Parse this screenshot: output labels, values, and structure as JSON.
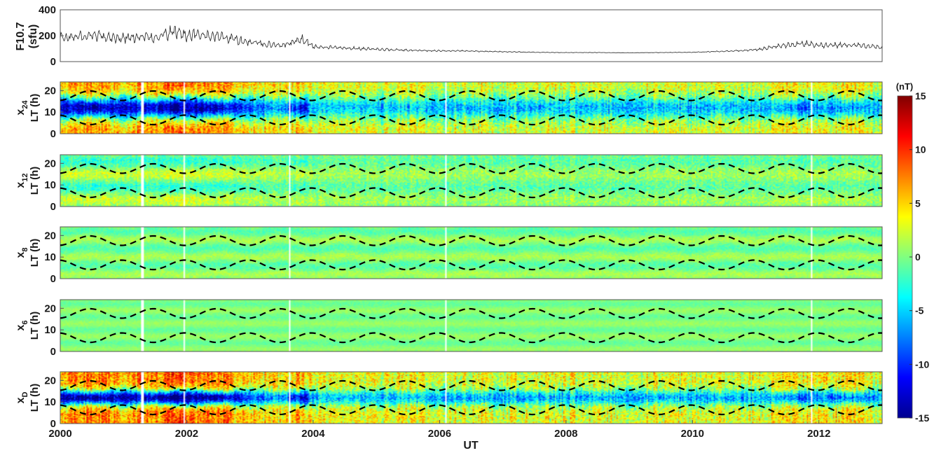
{
  "chart_data": [
    {
      "type": "line",
      "ylabel_line1": "F10.7",
      "ylabel_line2": "(sfu)",
      "xlim": [
        2000,
        2013
      ],
      "ylim": [
        0,
        400
      ],
      "yticks": [
        0,
        200,
        400
      ],
      "x": [
        2000.0,
        2000.5,
        2001.0,
        2001.3,
        2001.5,
        2001.8,
        2002.0,
        2002.5,
        2003.0,
        2003.5,
        2003.85,
        2004.0,
        2004.5,
        2005.0,
        2005.5,
        2006.0,
        2006.5,
        2007.0,
        2007.5,
        2008.0,
        2008.5,
        2009.0,
        2009.5,
        2010.0,
        2010.5,
        2011.0,
        2011.3,
        2011.8,
        2012.0,
        2012.5,
        2013.0
      ],
      "values": [
        185,
        200,
        180,
        195,
        180,
        230,
        205,
        195,
        150,
        125,
        175,
        115,
        105,
        95,
        88,
        83,
        82,
        76,
        72,
        70,
        70,
        68,
        70,
        72,
        80,
        90,
        115,
        140,
        125,
        130,
        110
      ],
      "color": "#222222"
    },
    {
      "type": "heatmap",
      "ylabel_main": "x",
      "ylabel_sub": "24",
      "ylabel_unit": "LT (h)",
      "yticks": [
        0,
        10,
        20
      ],
      "ylim": [
        0,
        24
      ],
      "amplitude": 13,
      "pattern": "day_negative"
    },
    {
      "type": "heatmap",
      "ylabel_main": "x",
      "ylabel_sub": "12",
      "ylabel_unit": "LT (h)",
      "yticks": [
        0,
        10,
        20
      ],
      "ylim": [
        0,
        24
      ],
      "amplitude": 5,
      "pattern": "semidiurnal"
    },
    {
      "type": "heatmap",
      "ylabel_main": "x",
      "ylabel_sub": "8",
      "ylabel_unit": "LT (h)",
      "yticks": [
        0,
        10,
        20
      ],
      "ylim": [
        0,
        24
      ],
      "amplitude": 3,
      "pattern": "terdiurnal"
    },
    {
      "type": "heatmap",
      "ylabel_main": "x",
      "ylabel_sub": "6",
      "ylabel_unit": "LT (h)",
      "yticks": [
        0,
        10,
        20
      ],
      "ylim": [
        0,
        24
      ],
      "amplitude": 2,
      "pattern": "quarterdiurnal"
    },
    {
      "type": "heatmap",
      "ylabel_main": "x",
      "ylabel_sub": "D",
      "ylabel_unit": "LT (h)",
      "yticks": [
        0,
        10,
        20
      ],
      "ylim": [
        0,
        24
      ],
      "amplitude": 14,
      "pattern": "day_negative_band"
    }
  ],
  "xaxis": {
    "label": "UT",
    "xlim": [
      2000,
      2013
    ],
    "ticks": [
      2000,
      2002,
      2004,
      2006,
      2008,
      2010,
      2012
    ]
  },
  "colorbar": {
    "title": "(nT)",
    "min": -15,
    "max": 15,
    "ticks": [
      15,
      10,
      5,
      0,
      -5,
      -10,
      -15
    ],
    "colormap": "jet"
  },
  "dashed_lines": {
    "color": "#000000",
    "mean_lt_upper": 17.6,
    "mean_lt_lower": 6.4,
    "semi_amplitude_h": 2.2
  },
  "data_gaps": [
    2001.3,
    2001.97,
    2003.62,
    2006.1,
    2011.88
  ]
}
